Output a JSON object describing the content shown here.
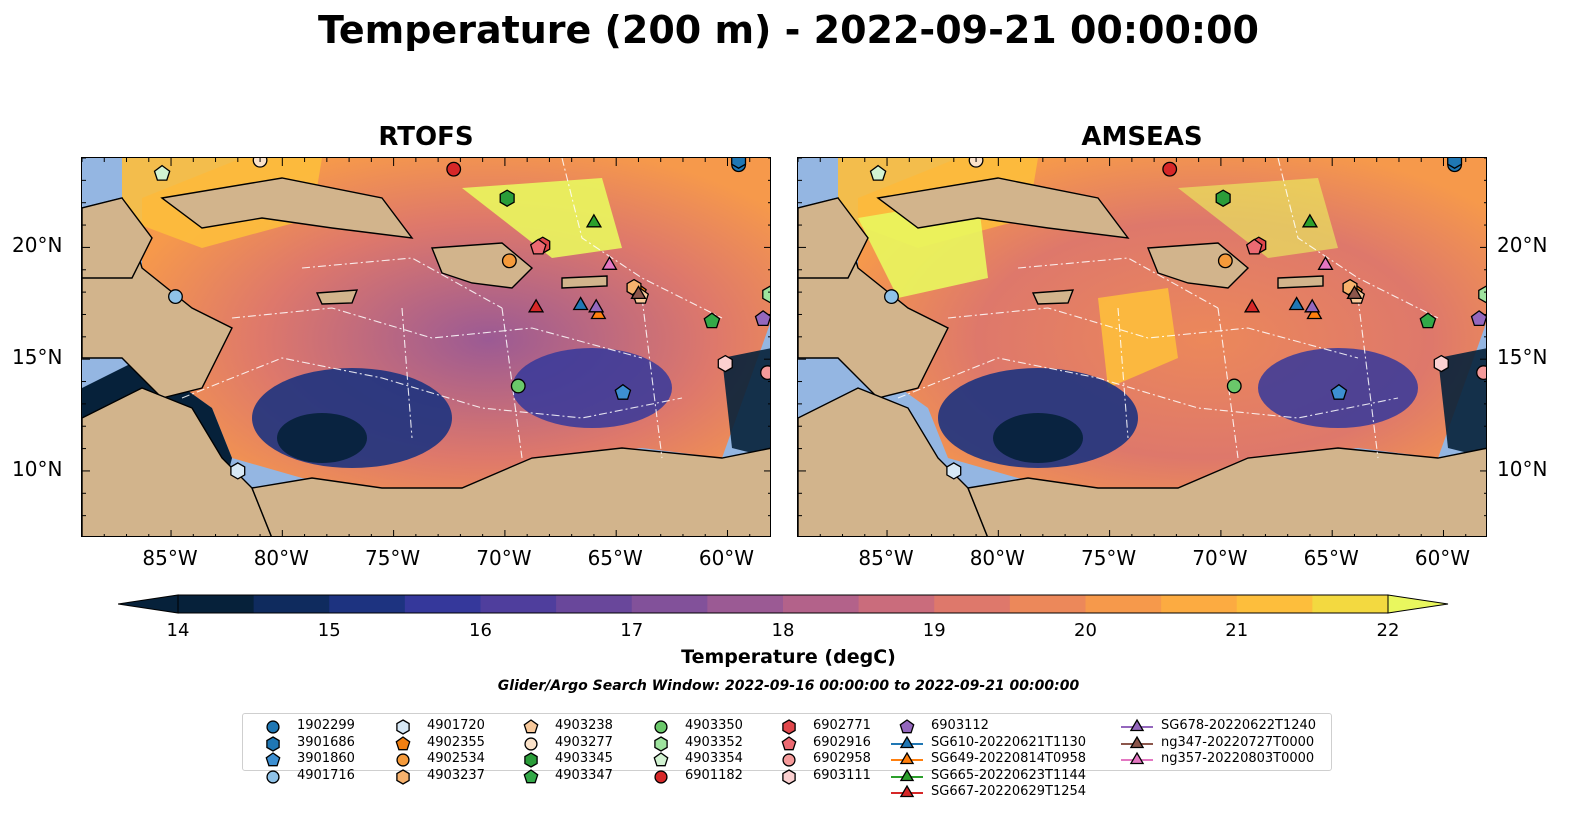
{
  "title": "Temperature (200 m) - 2022-09-21 00:00:00",
  "panels": [
    {
      "name": "RTOFS"
    },
    {
      "name": "AMSEAS"
    }
  ],
  "colorbar": {
    "label": "Temperature (degC)",
    "ticks": [
      "14",
      "15",
      "16",
      "17",
      "18",
      "19",
      "20",
      "21",
      "22"
    ],
    "colors": [
      "#06213a",
      "#0f2b5e",
      "#1d3380",
      "#35389b",
      "#4f3e9d",
      "#69479b",
      "#82519a",
      "#9b5a94",
      "#b3628a",
      "#ca6c7c",
      "#de786b",
      "#ec885a",
      "#f6994b",
      "#fcab41",
      "#fdbe3c",
      "#f3d940"
    ],
    "extend_low": "#06213a",
    "extend_high": "#e9f75e"
  },
  "search_window": "Glider/Argo Search Window: 2022-09-16 00:00:00 to 2022-09-21 00:00:00",
  "chart_data": {
    "type": "heatmap",
    "title": "Temperature (200 m) - 2022-09-21 00:00:00",
    "variable": "Temperature (200 m)",
    "units": "degC",
    "color_range": [
      14,
      22
    ],
    "lon_range": [
      -89,
      -58
    ],
    "lat_range": [
      7,
      24
    ],
    "x_ticks": [
      "85°W",
      "80°W",
      "75°W",
      "70°W",
      "65°W",
      "60°W"
    ],
    "y_ticks": [
      "20°N",
      "15°N",
      "10°N"
    ],
    "panels": [
      "RTOFS",
      "AMSEAS"
    ],
    "legend_placement": "bottom",
    "observations": [
      {
        "id": "1902299",
        "marker": "circle",
        "color": "#1f77b4",
        "lon": -59.5,
        "lat": 23.7
      },
      {
        "id": "3901686",
        "marker": "hexagon",
        "color": "#1f77b4",
        "lon": -59.5,
        "lat": 23.9
      },
      {
        "id": "3901860",
        "marker": "pentagon",
        "color": "#3d8fd1",
        "lon": -64.7,
        "lat": 13.5
      },
      {
        "id": "4901716",
        "marker": "circle",
        "color": "#8fc2e8",
        "lon": -84.8,
        "lat": 17.8
      },
      {
        "id": "4901720",
        "marker": "hexagon",
        "color": "#d7e8f5",
        "lon": -82.0,
        "lat": 10.0
      },
      {
        "id": "4902355",
        "marker": "pentagon",
        "color": "#f07f12",
        "lon": -64.0,
        "lat": 18.0
      },
      {
        "id": "4902534",
        "marker": "circle",
        "color": "#f59a3a",
        "lon": -69.8,
        "lat": 19.4
      },
      {
        "id": "4903237",
        "marker": "hexagon",
        "color": "#f7b26d",
        "lon": -64.2,
        "lat": 18.2
      },
      {
        "id": "4903238",
        "marker": "pentagon",
        "color": "#f8c99b",
        "lon": -63.9,
        "lat": 17.8
      },
      {
        "id": "4903277",
        "marker": "circle",
        "color": "#fbe2c9",
        "lon": -81.0,
        "lat": 23.9
      },
      {
        "id": "4903345",
        "marker": "hexagon",
        "color": "#2a9d39",
        "lon": -69.9,
        "lat": 22.2
      },
      {
        "id": "4903347",
        "marker": "pentagon",
        "color": "#33a948",
        "lon": -60.7,
        "lat": 16.7
      },
      {
        "id": "4903350",
        "marker": "circle",
        "color": "#6ac86a",
        "lon": -69.4,
        "lat": 13.8
      },
      {
        "id": "4903352",
        "marker": "hexagon",
        "color": "#9ee39e",
        "lon": -58.1,
        "lat": 17.9
      },
      {
        "id": "4903354",
        "marker": "pentagon",
        "color": "#d2f3d2",
        "lon": -85.4,
        "lat": 23.3
      },
      {
        "id": "6901182",
        "marker": "circle",
        "color": "#d62728",
        "lon": -72.3,
        "lat": 23.5
      },
      {
        "id": "6902771",
        "marker": "hexagon",
        "color": "#e0474b",
        "lon": -68.3,
        "lat": 20.1
      },
      {
        "id": "6902916",
        "marker": "pentagon",
        "color": "#ec6a72",
        "lon": -68.5,
        "lat": 20.0
      },
      {
        "id": "6902958",
        "marker": "circle",
        "color": "#f59a9a",
        "lon": -58.2,
        "lat": 14.4
      },
      {
        "id": "6903111",
        "marker": "hexagon",
        "color": "#fbd0d0",
        "lon": -60.1,
        "lat": 14.8
      },
      {
        "id": "6903112",
        "marker": "pentagon",
        "color": "#9467bd",
        "lon": -58.4,
        "lat": 16.8
      },
      {
        "id": "SG610-20220621T1130",
        "marker": "triangle",
        "color": "#1f77b4",
        "lon": -66.6,
        "lat": 17.4
      },
      {
        "id": "SG649-20220814T0958",
        "marker": "triangle",
        "color": "#ff7f0e",
        "lon": -65.8,
        "lat": 17.0
      },
      {
        "id": "SG665-20220623T1144",
        "marker": "triangle",
        "color": "#2ca02c",
        "lon": -66.0,
        "lat": 21.1
      },
      {
        "id": "SG667-20220629T1254",
        "marker": "triangle",
        "color": "#d62728",
        "lon": -68.6,
        "lat": 17.3
      },
      {
        "id": "SG678-20220622T1240",
        "marker": "triangle",
        "color": "#9467bd",
        "lon": -65.9,
        "lat": 17.3
      },
      {
        "id": "ng347-20220727T0000",
        "marker": "triangle",
        "color": "#8c564b",
        "lon": -64.0,
        "lat": 17.9
      },
      {
        "id": "ng357-20220803T0000",
        "marker": "triangle",
        "color": "#e377c2",
        "lon": -65.3,
        "lat": 19.2
      }
    ]
  }
}
